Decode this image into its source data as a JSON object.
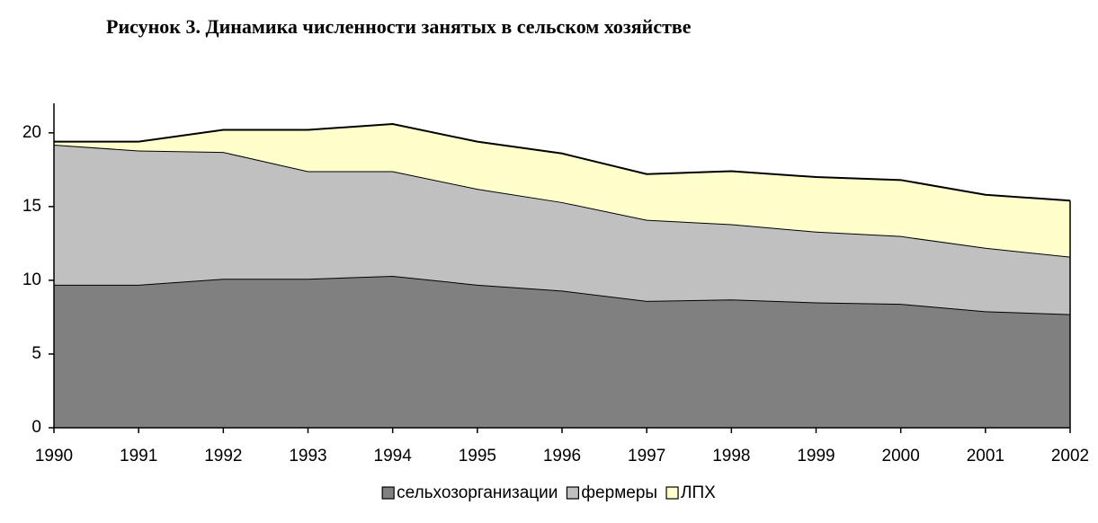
{
  "chart_data": {
    "type": "stacked_area",
    "title": "Рисунок 3. Динамика численности занятых в сельском хозяйстве",
    "categories": [
      "1990",
      "1991",
      "1992",
      "1993",
      "1994",
      "1995",
      "1996",
      "1997",
      "1998",
      "1999",
      "2000",
      "2001",
      "2002"
    ],
    "series": [
      {
        "name": "сельхозорганизации",
        "color": "#808080",
        "values": [
          9.7,
          9.7,
          10.1,
          10.1,
          10.3,
          9.7,
          9.3,
          8.6,
          8.7,
          8.5,
          8.4,
          7.9,
          7.7
        ]
      },
      {
        "name": "фермеры",
        "color": "#c0c0c0",
        "values": [
          9.5,
          9.1,
          8.6,
          7.3,
          7.1,
          6.5,
          6.0,
          5.5,
          5.1,
          4.8,
          4.6,
          4.3,
          3.9
        ]
      },
      {
        "name": "ЛПХ",
        "color": "#ffffcc",
        "values": [
          0.2,
          0.6,
          1.5,
          2.8,
          3.2,
          3.2,
          3.3,
          3.1,
          3.6,
          3.7,
          3.8,
          3.6,
          3.8
        ]
      }
    ],
    "ylim": [
      0,
      22
    ],
    "yticks": [
      0,
      5,
      10,
      15,
      20
    ],
    "legend": "bottom"
  }
}
